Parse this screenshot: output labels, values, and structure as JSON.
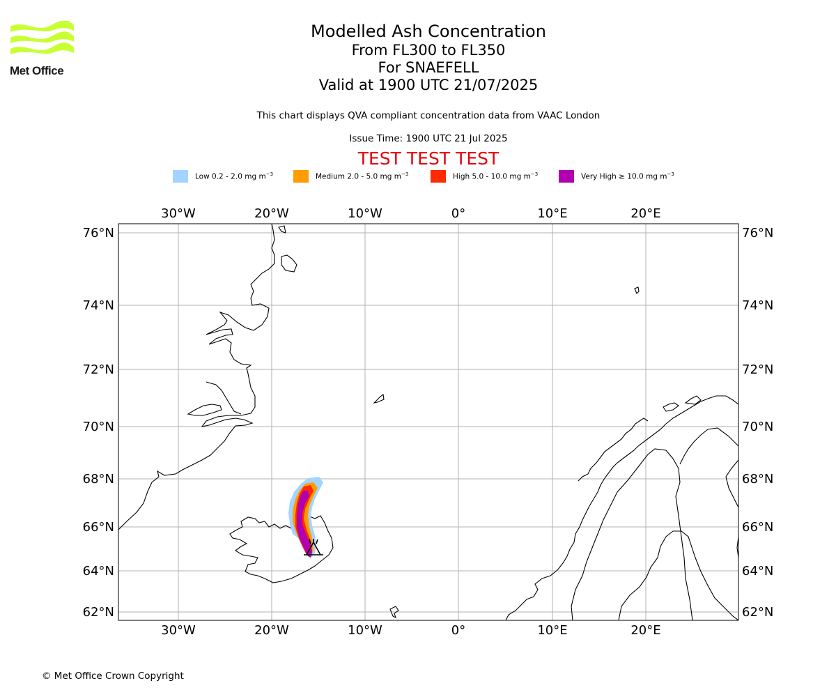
{
  "header": {
    "logo_text": "Met Office",
    "title": "Modelled Ash Concentration",
    "level_range": "From FL300 to FL350",
    "volcano": "For SNAEFELL",
    "valid_time": "Valid at 1900 UTC 21/07/2025",
    "qva_note": "This chart displays QVA compliant concentration data from VAAC London",
    "issue_time": "Issue Time: 1900 UTC 21 Jul 2025",
    "test_banner": "TEST TEST TEST"
  },
  "legend": {
    "unit": "mg m",
    "unit_exponent": "−3",
    "items": [
      {
        "label": "Low 0.2 - 2.0",
        "color": "#a3d4ff"
      },
      {
        "label": "Medium 2.0 - 5.0",
        "color": "#ff9d00"
      },
      {
        "label": "High 5.0 - 10.0",
        "color": "#ff2a00"
      },
      {
        "label": "Very High  ≥  10.0",
        "color": "#b000b0"
      }
    ]
  },
  "map": {
    "lon_ticks": [
      "30°W",
      "20°W",
      "10°W",
      "0°",
      "10°E",
      "20°E"
    ],
    "lat_ticks": [
      "76°N",
      "74°N",
      "72°N",
      "70°N",
      "68°N",
      "66°N",
      "64°N",
      "62°N"
    ],
    "volcano_marker": "volcano-symbol",
    "logo_color": "#c8ff32",
    "test_color": "#e8000b"
  },
  "footer": {
    "copyright": "© Met Office Crown Copyright"
  }
}
